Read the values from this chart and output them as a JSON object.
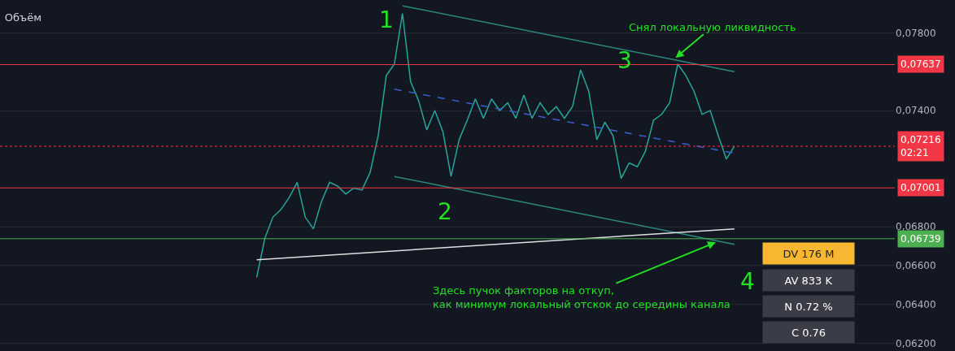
{
  "chart_data": {
    "type": "line",
    "title": "Объём",
    "categories": [
      null,
      null,
      null,
      null,
      null,
      null,
      null,
      null,
      null,
      null,
      null,
      null,
      null,
      null,
      null,
      null,
      null,
      null,
      null,
      null,
      null,
      null,
      null,
      null,
      null,
      null,
      null,
      null,
      null,
      null,
      null,
      null,
      null,
      null,
      null,
      null,
      null,
      null,
      null,
      null,
      null,
      null,
      null,
      null,
      null,
      null,
      null,
      null,
      null,
      null,
      null,
      null,
      null,
      null,
      null,
      null,
      null,
      null,
      null,
      null
    ],
    "ylim": [
      0.0616,
      0.0797
    ],
    "tick_labels": "y",
    "grid": "y",
    "yticks": [
      {
        "value": 0.078,
        "label": "0,07800"
      },
      {
        "value": 0.074,
        "label": "0,07400"
      },
      {
        "value": 0.068,
        "label": "0,06800"
      },
      {
        "value": 0.066,
        "label": "0,06600"
      },
      {
        "value": 0.064,
        "label": "0,06400"
      },
      {
        "value": 0.062,
        "label": "0,06200"
      }
    ],
    "series": [
      {
        "color": "#26a69a",
        "values": [
          0.0654,
          0.0674,
          0.0685,
          0.0689,
          0.0695,
          0.0703,
          0.0685,
          0.0679,
          0.0693,
          0.0703,
          0.0701,
          0.0697,
          0.07,
          0.0699,
          0.0708,
          0.0727,
          0.0758,
          0.0764,
          0.079,
          0.0755,
          0.0745,
          0.073,
          0.074,
          0.0729,
          0.0706,
          0.0725,
          0.0735,
          0.0746,
          0.0736,
          0.0746,
          0.074,
          0.0744,
          0.0736,
          0.0748,
          0.0736,
          0.0744,
          0.0738,
          0.0742,
          0.0736,
          0.0742,
          0.0761,
          0.075,
          0.0725,
          0.0734,
          0.0727,
          0.0705,
          0.0713,
          0.0711,
          0.0719,
          0.0735,
          0.0738,
          0.0744,
          0.0764,
          0.0758,
          0.075,
          0.0738,
          0.074,
          0.0727,
          0.0715,
          0.07216
        ]
      },
      {
        "color": "#2a8a7f",
        "values": [
          null,
          null,
          null,
          null,
          null,
          null,
          null,
          null,
          null,
          null,
          null,
          null,
          null,
          null,
          null,
          null,
          null,
          null,
          0.0794,
          null,
          null,
          null,
          null,
          null,
          null,
          null,
          null,
          null,
          null,
          null,
          null,
          null,
          null,
          null,
          null,
          null,
          null,
          null,
          null,
          null,
          null,
          null,
          null,
          null,
          null,
          null,
          null,
          null,
          null,
          null,
          null,
          null,
          null,
          null,
          null,
          null,
          null,
          null,
          null,
          0.076
        ]
      },
      {
        "color": "#2a8a7f",
        "values": [
          null,
          null,
          null,
          null,
          null,
          null,
          null,
          null,
          null,
          null,
          null,
          null,
          null,
          null,
          null,
          null,
          null,
          0.0706,
          null,
          null,
          null,
          null,
          null,
          null,
          null,
          null,
          null,
          null,
          null,
          null,
          null,
          null,
          null,
          null,
          null,
          null,
          null,
          null,
          null,
          null,
          null,
          null,
          null,
          null,
          null,
          null,
          null,
          null,
          null,
          null,
          null,
          null,
          null,
          null,
          null,
          null,
          null,
          null,
          null,
          0.0671
        ]
      },
      {
        "color": "#3b5fd0",
        "line_style": "dashed",
        "values": [
          null,
          null,
          null,
          null,
          null,
          null,
          null,
          null,
          null,
          null,
          null,
          null,
          null,
          null,
          null,
          null,
          null,
          0.0751,
          null,
          null,
          null,
          null,
          null,
          null,
          null,
          null,
          null,
          null,
          null,
          null,
          null,
          null,
          null,
          null,
          null,
          null,
          null,
          null,
          null,
          null,
          null,
          null,
          null,
          null,
          null,
          null,
          null,
          null,
          null,
          null,
          null,
          null,
          null,
          null,
          null,
          null,
          null,
          null,
          null,
          0.0718
        ]
      },
      {
        "color": "#e0e0e0",
        "values": [
          0.0663,
          null,
          null,
          null,
          null,
          null,
          null,
          null,
          null,
          null,
          null,
          null,
          null,
          null,
          null,
          null,
          null,
          null,
          null,
          null,
          null,
          null,
          null,
          null,
          null,
          null,
          null,
          null,
          null,
          null,
          null,
          null,
          null,
          null,
          null,
          null,
          null,
          null,
          null,
          null,
          null,
          null,
          null,
          null,
          null,
          null,
          null,
          null,
          null,
          null,
          null,
          null,
          null,
          null,
          null,
          null,
          null,
          null,
          null,
          0.0679
        ]
      }
    ],
    "ref_lines": [
      {
        "axis": "y",
        "value": 0.07637,
        "label": "0,07637",
        "color": "#f23645"
      },
      {
        "axis": "y",
        "value": 0.07001,
        "label": "0,07001",
        "color": "#f23645"
      },
      {
        "axis": "y",
        "value": 0.06739,
        "label": "0,06739",
        "color": "#4caf50"
      },
      {
        "axis": "y",
        "value": 0.07216,
        "label": "0,07216\n02:21",
        "color": "#f23645",
        "line_style": "dotted"
      }
    ],
    "annotations": [
      "1",
      "2",
      "3",
      "4",
      "Снял локальную ликвидность",
      "Здесь пучок факторов на откуп,\nкак минимум локальный отскок до середины канала",
      "DV 176 M",
      "AV 833 K",
      "N 0.72 %",
      "C 0.76"
    ]
  }
}
